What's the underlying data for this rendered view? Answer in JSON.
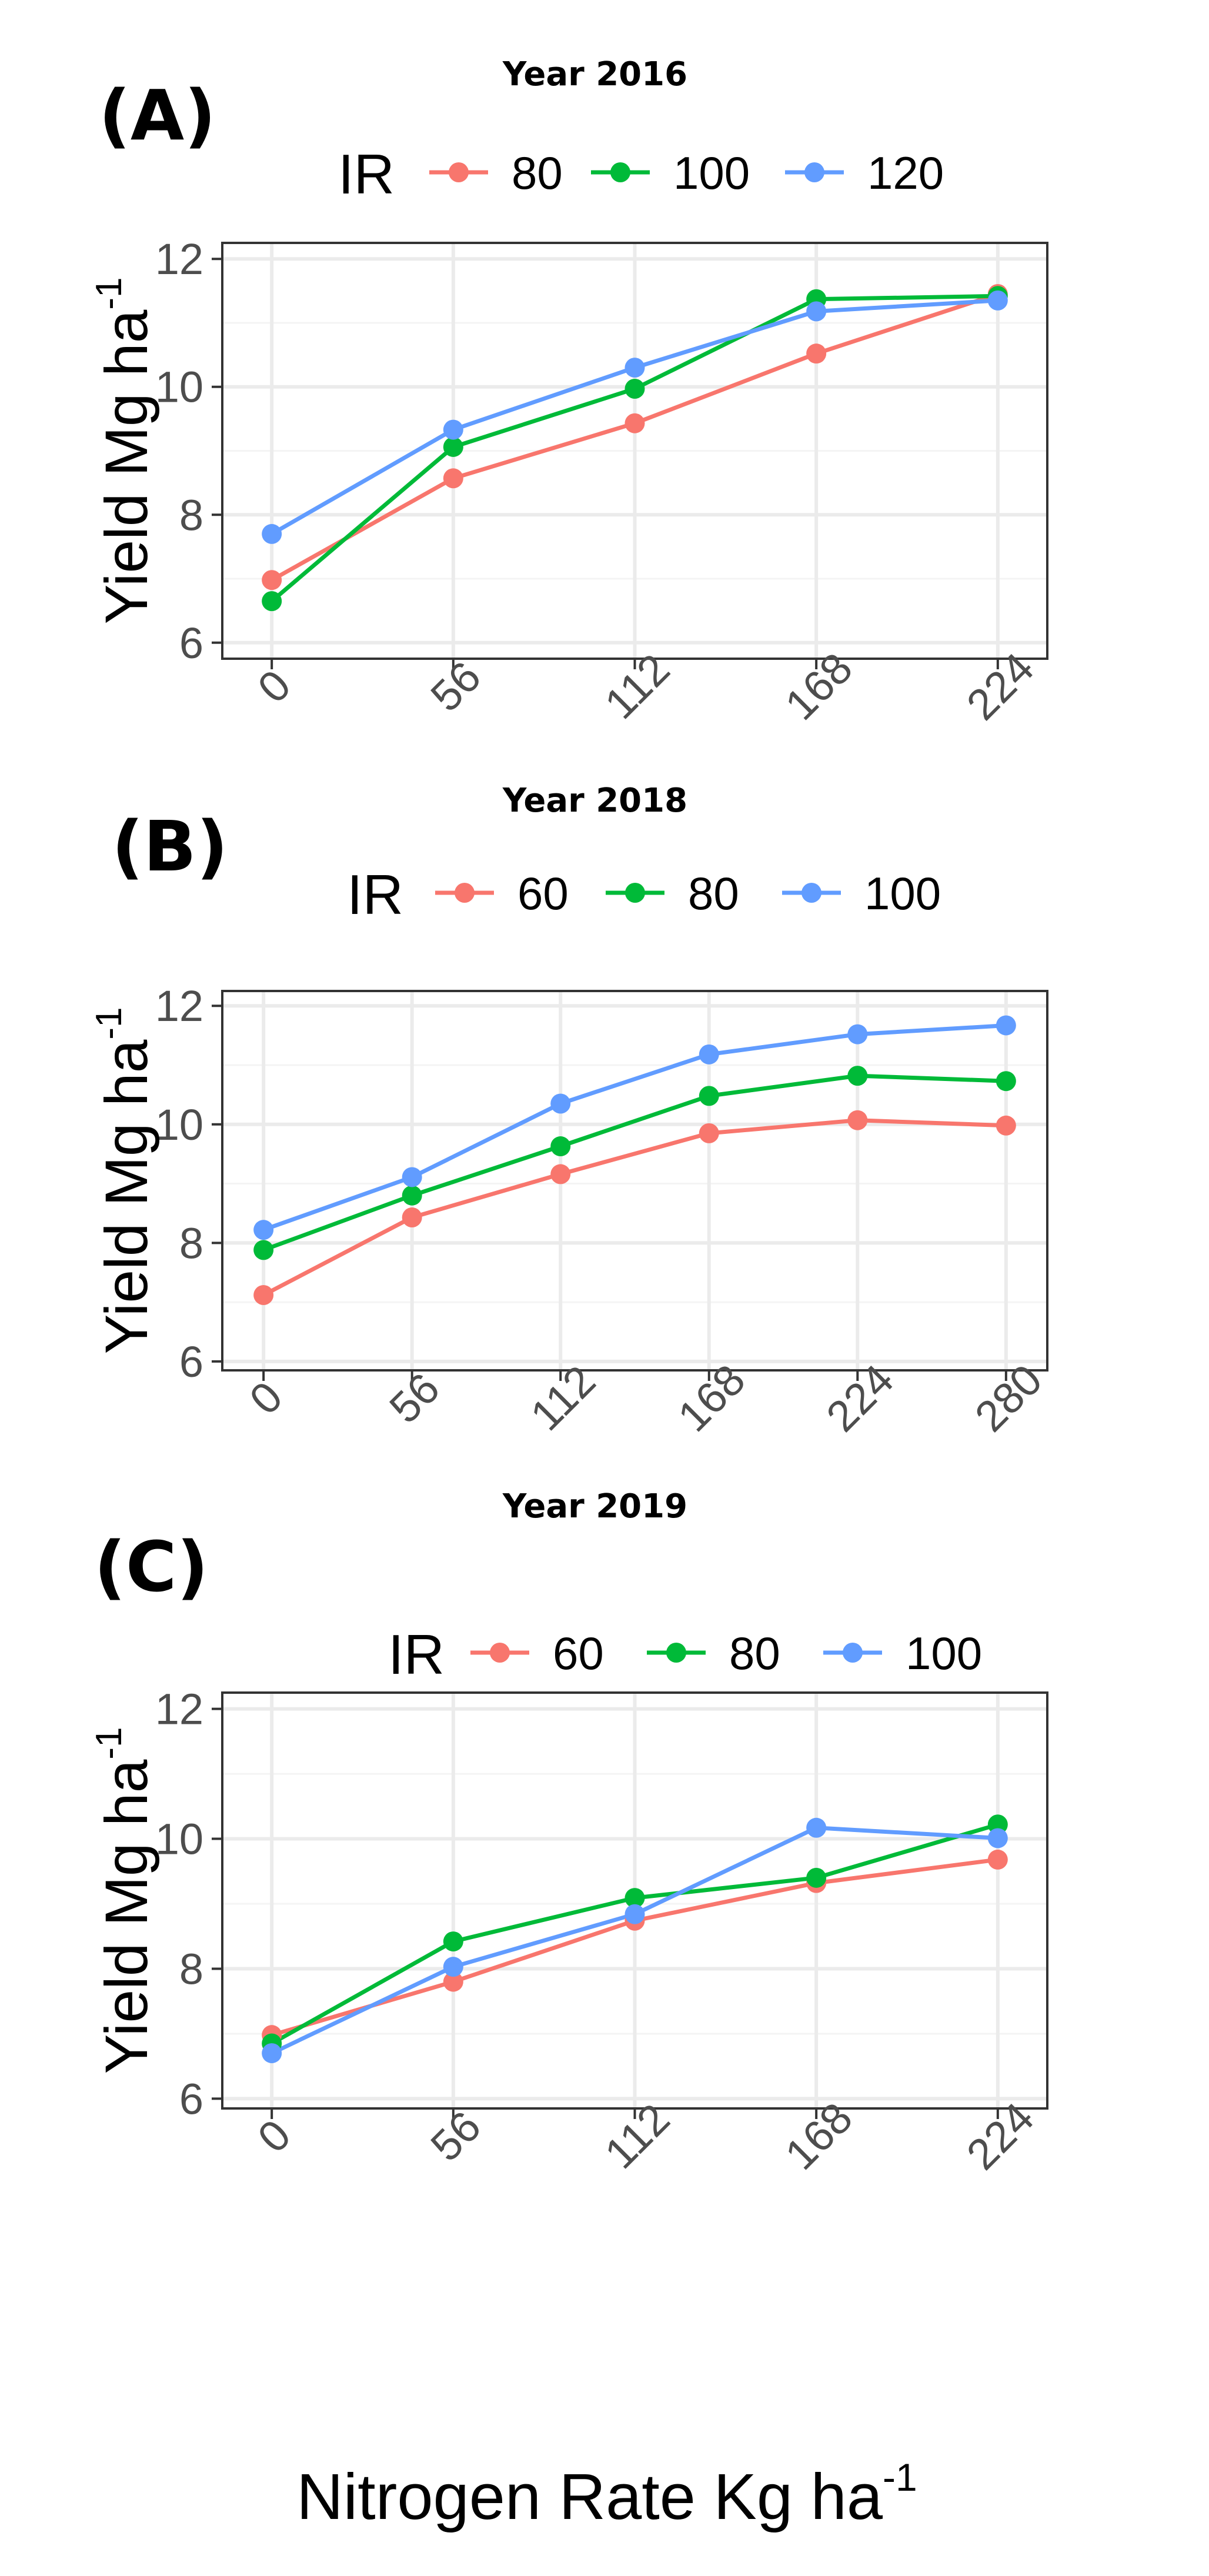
{
  "colors": {
    "series": [
      "#F8766D",
      "#00BA38",
      "#619CFF"
    ],
    "grid_major": "#EBEBEB",
    "grid_minor": "#F4F4F4",
    "panel_border": "#333333",
    "text": "#000000",
    "tick_text": "#4D4D4D"
  },
  "legend_title": "IR",
  "x_axis_label": "Nitrogen Rate Kg ha",
  "x_axis_label_sup": "-1",
  "y_axis_label": "Yield Mg ha",
  "y_axis_label_sup": "-1",
  "chart_data": [
    {
      "type": "line",
      "panel_label": "(A)",
      "title": "Year 2016",
      "legend_title": "IR",
      "categories": [
        "0",
        "56",
        "112",
        "168",
        "224"
      ],
      "ylim": [
        5.75,
        12.25
      ],
      "yticks": [
        6,
        8,
        10,
        12
      ],
      "series": [
        {
          "name": "80",
          "values": [
            6.98,
            8.57,
            9.43,
            10.52,
            11.45
          ]
        },
        {
          "name": "100",
          "values": [
            6.65,
            9.06,
            9.97,
            11.37,
            11.42
          ]
        },
        {
          "name": "120",
          "values": [
            7.7,
            9.33,
            10.3,
            11.18,
            11.35
          ]
        }
      ]
    },
    {
      "type": "line",
      "panel_label": "(B)",
      "title": "Year 2018",
      "legend_title": "IR",
      "categories": [
        "0",
        "56",
        "112",
        "168",
        "224",
        "280"
      ],
      "ylim": [
        5.85,
        12.25
      ],
      "yticks": [
        6,
        8,
        10,
        12
      ],
      "series": [
        {
          "name": "60",
          "values": [
            7.12,
            8.43,
            9.16,
            9.85,
            10.07,
            9.98
          ]
        },
        {
          "name": "80",
          "values": [
            7.88,
            8.8,
            9.63,
            10.48,
            10.82,
            10.73
          ]
        },
        {
          "name": "100",
          "values": [
            8.22,
            9.11,
            10.35,
            11.18,
            11.52,
            11.67
          ]
        }
      ]
    },
    {
      "type": "line",
      "panel_label": "(C)",
      "title": "Year 2019",
      "legend_title": "IR",
      "categories": [
        "0",
        "56",
        "112",
        "168",
        "224"
      ],
      "ylim": [
        5.85,
        12.25
      ],
      "yticks": [
        6,
        8,
        10,
        12
      ],
      "series": [
        {
          "name": "60",
          "values": [
            6.98,
            7.8,
            8.74,
            9.32,
            9.68
          ]
        },
        {
          "name": "80",
          "values": [
            6.85,
            8.42,
            9.09,
            9.4,
            10.22
          ]
        },
        {
          "name": "100",
          "values": [
            6.7,
            8.03,
            8.84,
            10.17,
            10.01
          ]
        }
      ]
    }
  ]
}
